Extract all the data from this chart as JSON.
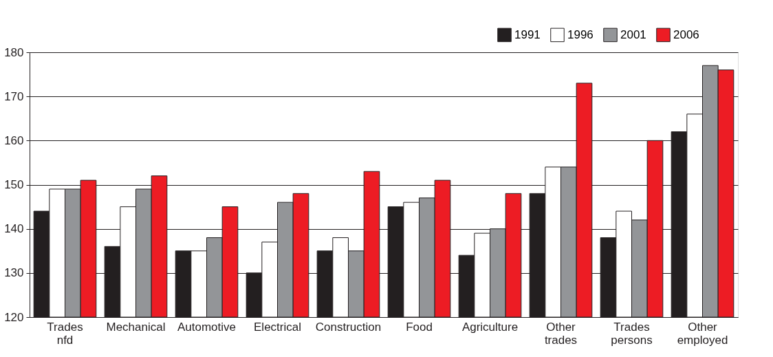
{
  "chart_data": {
    "type": "bar",
    "categories": [
      "Trades nfd",
      "Mechanical",
      "Automotive",
      "Electrical",
      "Construction",
      "Food",
      "Agriculture",
      "Other trades",
      "Trades persons",
      "Other employed"
    ],
    "series": [
      {
        "name": "1991",
        "color": "#231f20",
        "values": [
          144,
          136,
          135,
          130,
          135,
          145,
          134,
          148,
          138,
          162
        ]
      },
      {
        "name": "1996",
        "color": "#ffffff",
        "values": [
          149,
          145,
          135,
          137,
          138,
          146,
          139,
          154,
          144,
          166
        ]
      },
      {
        "name": "2001",
        "color": "#939598",
        "values": [
          149,
          149,
          138,
          146,
          135,
          147,
          140,
          154,
          142,
          177
        ]
      },
      {
        "name": "2006",
        "color": "#ed1c24",
        "values": [
          151,
          152,
          145,
          148,
          153,
          151,
          148,
          173,
          160,
          176
        ]
      }
    ],
    "ylim": [
      120,
      180
    ],
    "yticks": [
      120,
      130,
      140,
      150,
      160,
      170,
      180
    ],
    "grid": "y",
    "legend": "top right"
  }
}
